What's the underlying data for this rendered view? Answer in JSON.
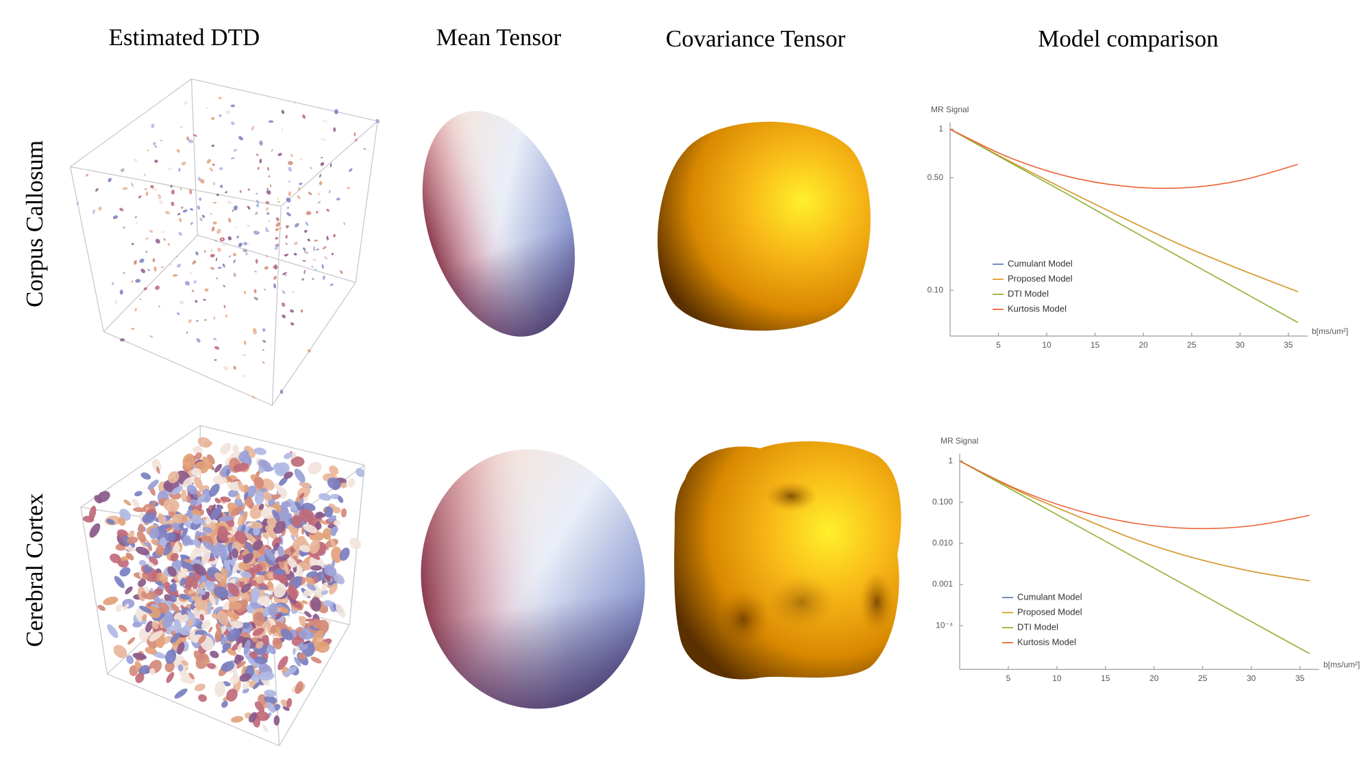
{
  "headers": [
    "Estimated DTD",
    "Mean Tensor",
    "Covariance Tensor",
    "Model comparison"
  ],
  "row_labels": [
    "Corpus Callosum",
    "Cerebral Cortex"
  ],
  "chart_data": [
    {
      "type": "line",
      "y_label": "MR Signal",
      "x_label": "b[ms/um²]",
      "log_y": true,
      "legend": "lower left",
      "x": [
        0,
        6,
        12,
        18,
        24,
        30,
        36
      ],
      "xlim": [
        0,
        37
      ],
      "xticks": [
        5,
        10,
        15,
        20,
        25,
        30,
        35
      ],
      "ylim": [
        0.052,
        1.1
      ],
      "yticks": [
        1,
        {
          "value": 0.5,
          "label": "0.50"
        },
        {
          "value": 0.1,
          "label": "0.10"
        }
      ],
      "series": [
        {
          "name": "Cumulant Model",
          "color": "#5e81b5",
          "values": [
            1,
            0.64,
            0.42,
            0.28,
            0.19,
            0.135,
            0.098
          ]
        },
        {
          "name": "Proposed Model",
          "color": "#e19c24",
          "values": [
            1,
            0.64,
            0.42,
            0.28,
            0.19,
            0.135,
            0.098
          ]
        },
        {
          "name": "DTI Model",
          "color": "#8fb032",
          "values": [
            1,
            0.63,
            0.4,
            0.25,
            0.158,
            0.1,
            0.063
          ]
        },
        {
          "name": "Kurtosis Model",
          "color": "#eb6235",
          "values": [
            1,
            0.672,
            0.512,
            0.443,
            0.432,
            0.48,
            0.605
          ]
        }
      ]
    },
    {
      "type": "line",
      "y_label": "MR Signal",
      "x_label": "b[ms/um²]",
      "log_y": true,
      "legend": "lower left",
      "x": [
        0,
        6,
        12,
        18,
        24,
        30,
        36
      ],
      "xlim": [
        0,
        37
      ],
      "xticks": [
        5,
        10,
        15,
        20,
        25,
        30,
        35
      ],
      "ylim": [
        8.7e-06,
        1.5
      ],
      "yticks": [
        1,
        {
          "value": 0.1,
          "label": "0.100"
        },
        {
          "value": 0.01,
          "label": "0.010"
        },
        {
          "value": 0.001,
          "label": "0.001"
        },
        {
          "value": 0.0001,
          "label": "10⁻⁴"
        }
      ],
      "series": [
        {
          "name": "Cumulant Model",
          "color": "#5e81b5",
          "values": [
            1,
            0.19,
            0.047,
            0.0126,
            0.0045,
            0.0021,
            0.00123
          ]
        },
        {
          "name": "Proposed Model",
          "color": "#e19c24",
          "values": [
            1,
            0.19,
            0.047,
            0.0126,
            0.0045,
            0.0021,
            0.00123
          ]
        },
        {
          "name": "DTI Model",
          "color": "#8fb032",
          "values": [
            1,
            0.166,
            0.0275,
            0.00457,
            0.00076,
            0.000126,
            2.1e-05
          ]
        },
        {
          "name": "Kurtosis Model",
          "color": "#eb6235",
          "values": [
            1,
            0.203,
            0.064,
            0.0308,
            0.023,
            0.0267,
            0.048
          ]
        }
      ]
    }
  ]
}
